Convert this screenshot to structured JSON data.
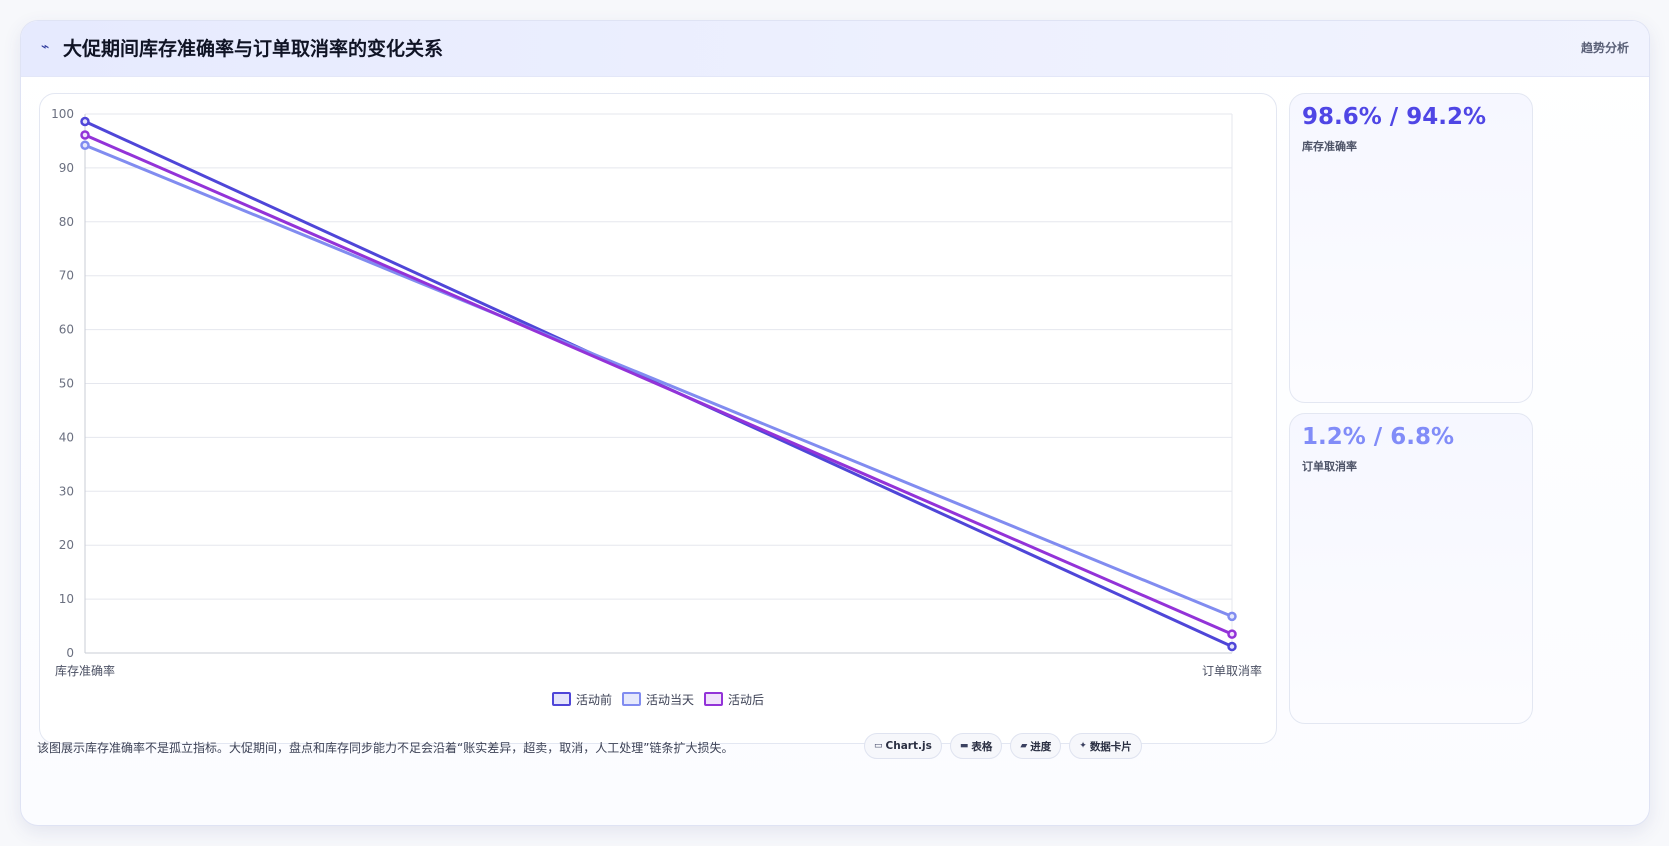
{
  "header": {
    "icon": "trend-line-icon",
    "title": "大促期间库存准确率与订单取消率的变化关系",
    "tag": "趋势分析"
  },
  "stats": [
    {
      "value": "98.6% / 94.2%",
      "label": "库存准确率",
      "color": "#4f46e5"
    },
    {
      "value": "1.2% / 6.8%",
      "label": "订单取消率",
      "color": "#818cf8"
    }
  ],
  "footnote": "该图展示库存准确率不是孤立指标。大促期间，盘点和库存同步能力不足会沿着“账实差异，超卖，取消，人工处理”链条扩大损失。",
  "pills": [
    {
      "icon": "▭",
      "icon_name": "chart-icon",
      "label": "Chart.js"
    },
    {
      "icon": "▬",
      "icon_name": "table-icon",
      "label": "表格"
    },
    {
      "icon": "▰",
      "icon_name": "progress-icon",
      "label": "进度"
    },
    {
      "icon": "✦",
      "icon_name": "sparkle-icon",
      "label": "数据卡片"
    }
  ],
  "chart_data": {
    "type": "line",
    "categories": [
      "库存准确率",
      "订单取消率"
    ],
    "series": [
      {
        "name": "活动前",
        "values": [
          98.6,
          1.2
        ],
        "color": "#4f46d8",
        "fill": "#e4e4fb"
      },
      {
        "name": "活动当天",
        "values": [
          94.2,
          6.8
        ],
        "color": "#818cf0",
        "fill": "#e6e9fc"
      },
      {
        "name": "活动后",
        "values": [
          96.1,
          3.5
        ],
        "color": "#9333d8",
        "fill": "#f1e2fb"
      }
    ],
    "ylim": [
      0,
      100
    ],
    "yticks": [
      "0",
      "10",
      "20",
      "30",
      "40",
      "50",
      "60",
      "70",
      "80",
      "90",
      "100"
    ],
    "grid": true,
    "legend_position": "bottom"
  }
}
